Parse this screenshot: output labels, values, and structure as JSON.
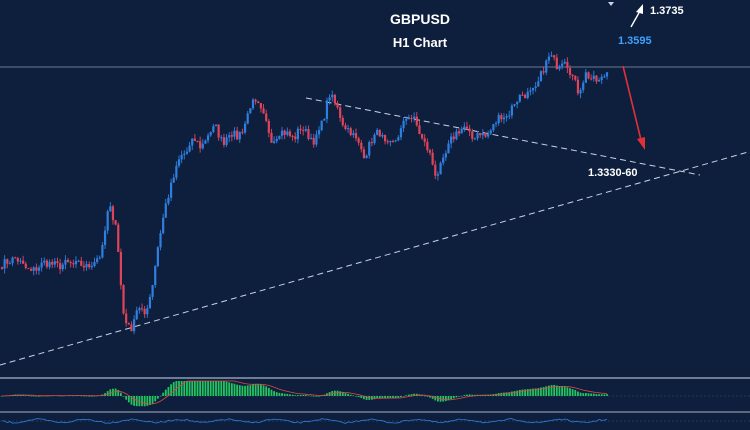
{
  "chart_data": {
    "type": "candlestick",
    "title": "GBPUSD",
    "subtitle": "H1 Chart",
    "colors": {
      "background": "#0d1f3c",
      "bull": "#2f7fe0",
      "bear": "#e0445a",
      "trendline": "#c9d3e6",
      "arrow_down": "#e0303a",
      "arrow_up": "#ffffff",
      "price_current": "#3fa0ff",
      "macd_hist": "#22c55e",
      "macd_signal": "#e04848"
    },
    "annotations": {
      "upper_target": "1.3735",
      "current_price": "1.3595",
      "support_zone": "1.3330-60"
    },
    "series_close_path": [
      1.312,
      1.3128,
      1.3135,
      1.3115,
      1.31,
      1.3112,
      1.3125,
      1.312,
      1.3115,
      1.3122,
      1.3118,
      1.312,
      1.3112,
      1.313,
      1.3145,
      1.3262,
      1.322,
      1.3005,
      1.2955,
      1.3015,
      1.2995,
      1.3055,
      1.3175,
      1.3265,
      1.3325,
      1.338,
      1.3395,
      1.3425,
      1.3405,
      1.344,
      1.3455,
      1.3415,
      1.3445,
      1.343,
      1.3455,
      1.3515,
      1.3505,
      1.347,
      1.342,
      1.3445,
      1.344,
      1.3425,
      1.3455,
      1.3435,
      1.342,
      1.3465,
      1.3535,
      1.3505,
      1.346,
      1.3445,
      1.3415,
      1.3385,
      1.3425,
      1.3445,
      1.3405,
      1.3415,
      1.3445,
      1.3485,
      1.347,
      1.3425,
      1.3395,
      1.3335,
      1.337,
      1.342,
      1.3445,
      1.3455,
      1.3425,
      1.3445,
      1.343,
      1.3455,
      1.3485,
      1.348,
      1.3515,
      1.3535,
      1.3535,
      1.3545,
      1.3595,
      1.363,
      1.3605,
      1.3625,
      1.3585,
      1.354,
      1.3585,
      1.357,
      1.3565,
      1.359
    ]
  }
}
